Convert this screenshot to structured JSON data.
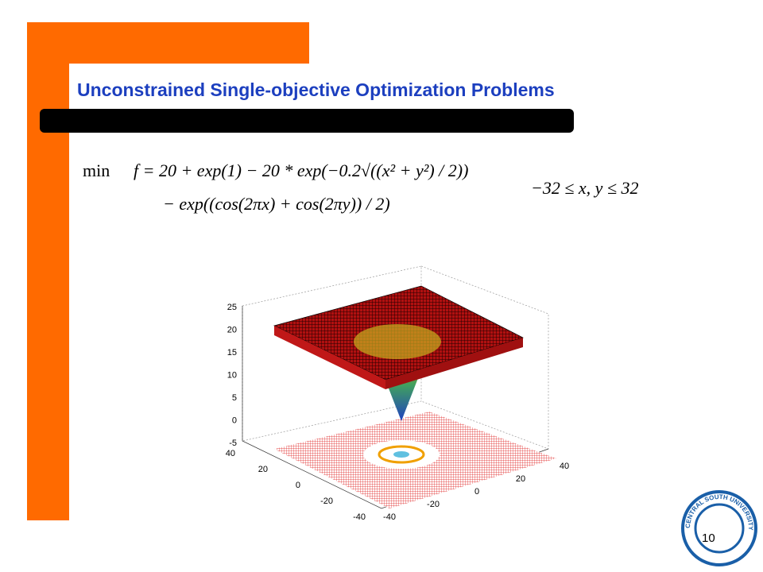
{
  "header": {
    "title": "Unconstrained Single-objective Optimization Problems"
  },
  "formula": {
    "operator": "min",
    "line1": "f = 20 + exp(1) − 20 * exp(−0.2√((x² + y²) / 2))",
    "line2": "− exp((cos(2πx) + cos(2πy)) / 2)",
    "constraint": "−32 ≤ x, y ≤ 32"
  },
  "figure": {
    "z_ticks": [
      "25",
      "20",
      "15",
      "10",
      "5",
      "0",
      "-5"
    ],
    "x_ticks": [
      "40",
      "20",
      "0",
      "-20",
      "-40"
    ],
    "y_ticks": [
      "-40",
      "-20",
      "0",
      "20",
      "40"
    ]
  },
  "footer": {
    "page_number": "10",
    "logo_text": "CENTRAL SOUTH UNIVERSITY"
  }
}
